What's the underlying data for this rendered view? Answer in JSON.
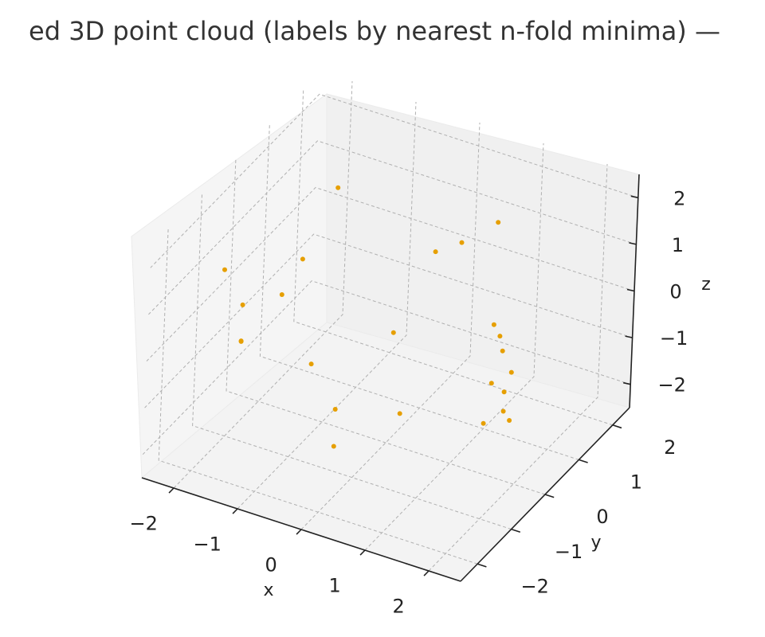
{
  "chart_data": {
    "type": "scatter",
    "title": "ed 3D point cloud (labels by nearest n-fold minima) —",
    "xlabel": "x",
    "ylabel": "y",
    "zlabel": "z",
    "x_ticks": [
      "−2",
      "−1",
      "0",
      "1",
      "2"
    ],
    "y_ticks": [
      "−2",
      "−1",
      "0",
      "1",
      "2"
    ],
    "z_ticks": [
      "−2",
      "−1",
      "0",
      "1",
      "2"
    ],
    "xlim": [
      -2.5,
      2.5
    ],
    "ylim": [
      -2.5,
      2.5
    ],
    "zlim": [
      -2.5,
      2.5
    ],
    "grid": true,
    "point_color": "#e69f00",
    "points": [
      {
        "x": 0.1,
        "y": -1.8,
        "z": -0.4
      },
      {
        "x": 0.4,
        "y": 0.5,
        "z": 1.4
      },
      {
        "x": 0.4,
        "y": 1.3,
        "z": 1.0
      },
      {
        "x": 0.6,
        "y": 2.0,
        "z": 1.0
      },
      {
        "x": -1.4,
        "y": -1.8,
        "z": 0.4
      },
      {
        "x": -1.4,
        "y": 1.0,
        "z": 1.6
      },
      {
        "x": -1.8,
        "y": -1.0,
        "z": 0.4
      },
      {
        "x": -1.4,
        "y": -0.6,
        "z": 0.5
      },
      {
        "x": -1.6,
        "y": -1.4,
        "z": 0.0
      },
      {
        "x": -1.2,
        "y": -0.4,
        "z": 1.2
      },
      {
        "x": -0.2,
        "y": 0.5,
        "z": -0.6
      },
      {
        "x": 0.2,
        "y": -2.0,
        "z": -1.0
      },
      {
        "x": -1.8,
        "y": -1.6,
        "z": 1.6
      },
      {
        "x": -0.4,
        "y": -1.6,
        "z": 0.2
      },
      {
        "x": 0.7,
        "y": 1.8,
        "z": -1.0
      },
      {
        "x": 0.8,
        "y": 1.8,
        "z": -1.2
      },
      {
        "x": 0.9,
        "y": 1.7,
        "z": -1.4
      },
      {
        "x": 1.2,
        "y": 1.4,
        "z": -1.5
      },
      {
        "x": 1.4,
        "y": 0.4,
        "z": -0.9
      },
      {
        "x": 1.6,
        "y": 0.4,
        "z": -1.0
      },
      {
        "x": 1.4,
        "y": 0.8,
        "z": -1.8
      },
      {
        "x": 1.2,
        "y": 0.6,
        "z": -2.0
      },
      {
        "x": 2.2,
        "y": -0.6,
        "z": -0.6
      },
      {
        "x": 0.4,
        "y": -0.4,
        "z": -1.4
      }
    ]
  }
}
